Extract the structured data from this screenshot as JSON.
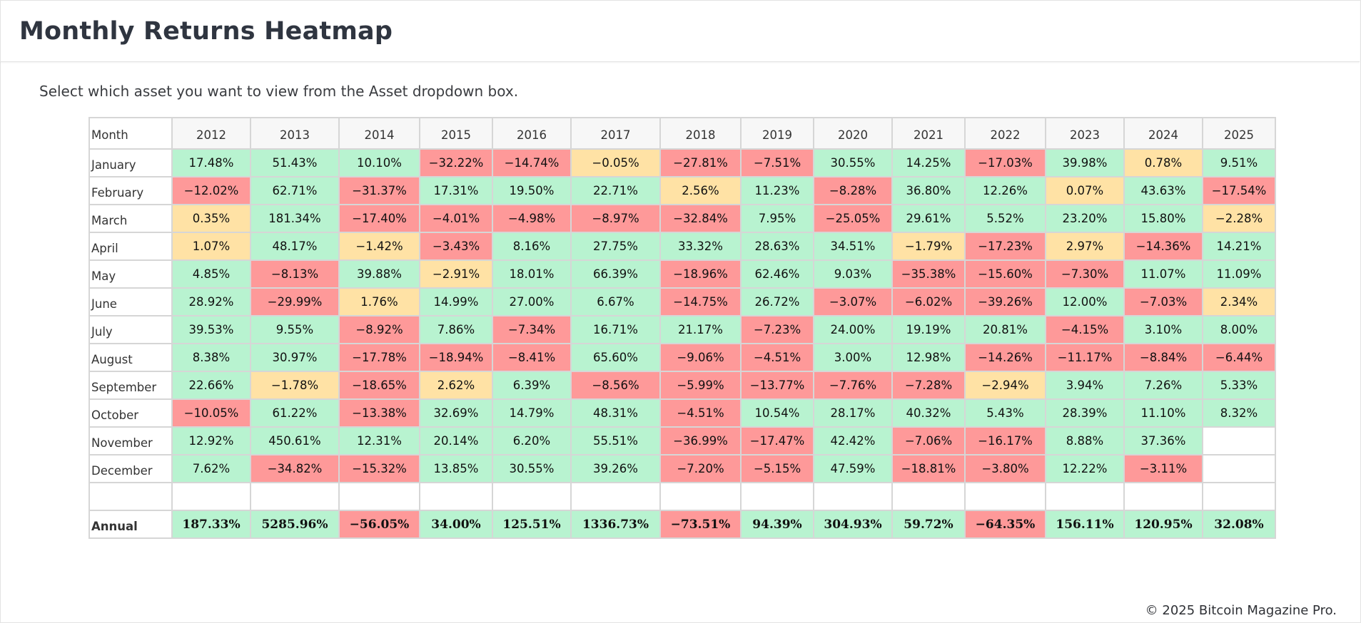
{
  "title": "Monthly Returns Heatmap",
  "instruction": "Select which asset you want to view from the Asset dropdown box.",
  "footer": "© 2025 Bitcoin Magazine Pro.",
  "colors": {
    "positive": "#b8f3d0",
    "negative": "#fe9999",
    "neutral": "#ffe2a5",
    "empty": "#ffffff"
  },
  "chart_data": {
    "type": "heatmap",
    "title": "Monthly Returns Heatmap",
    "row_header": "Month",
    "years": [
      "2012",
      "2013",
      "2014",
      "2015",
      "2016",
      "2017",
      "2018",
      "2019",
      "2020",
      "2021",
      "2022",
      "2023",
      "2024",
      "2025"
    ],
    "rows": [
      {
        "month": "January",
        "values": [
          "17.48%",
          "51.43%",
          "10.10%",
          "−32.22%",
          "−14.74%",
          "−0.05%",
          "−27.81%",
          "−7.51%",
          "30.55%",
          "14.25%",
          "−17.03%",
          "39.98%",
          "0.78%",
          "9.51%"
        ],
        "tones": [
          "pos",
          "pos",
          "pos",
          "neg",
          "neg",
          "neu",
          "neg",
          "neg",
          "pos",
          "pos",
          "neg",
          "pos",
          "neu",
          "pos"
        ]
      },
      {
        "month": "February",
        "values": [
          "−12.02%",
          "62.71%",
          "−31.37%",
          "17.31%",
          "19.50%",
          "22.71%",
          "2.56%",
          "11.23%",
          "−8.28%",
          "36.80%",
          "12.26%",
          "0.07%",
          "43.63%",
          "−17.54%"
        ],
        "tones": [
          "neg",
          "pos",
          "neg",
          "pos",
          "pos",
          "pos",
          "neu",
          "pos",
          "neg",
          "pos",
          "pos",
          "neu",
          "pos",
          "neg"
        ]
      },
      {
        "month": "March",
        "values": [
          "0.35%",
          "181.34%",
          "−17.40%",
          "−4.01%",
          "−4.98%",
          "−8.97%",
          "−32.84%",
          "7.95%",
          "−25.05%",
          "29.61%",
          "5.52%",
          "23.20%",
          "15.80%",
          "−2.28%"
        ],
        "tones": [
          "neu",
          "pos",
          "neg",
          "neg",
          "neg",
          "neg",
          "neg",
          "pos",
          "neg",
          "pos",
          "pos",
          "pos",
          "pos",
          "neu"
        ]
      },
      {
        "month": "April",
        "values": [
          "1.07%",
          "48.17%",
          "−1.42%",
          "−3.43%",
          "8.16%",
          "27.75%",
          "33.32%",
          "28.63%",
          "34.51%",
          "−1.79%",
          "−17.23%",
          "2.97%",
          "−14.36%",
          "14.21%"
        ],
        "tones": [
          "neu",
          "pos",
          "neu",
          "neg",
          "pos",
          "pos",
          "pos",
          "pos",
          "pos",
          "neu",
          "neg",
          "neu",
          "neg",
          "pos"
        ]
      },
      {
        "month": "May",
        "values": [
          "4.85%",
          "−8.13%",
          "39.88%",
          "−2.91%",
          "18.01%",
          "66.39%",
          "−18.96%",
          "62.46%",
          "9.03%",
          "−35.38%",
          "−15.60%",
          "−7.30%",
          "11.07%",
          "11.09%"
        ],
        "tones": [
          "pos",
          "neg",
          "pos",
          "neu",
          "pos",
          "pos",
          "neg",
          "pos",
          "pos",
          "neg",
          "neg",
          "neg",
          "pos",
          "pos"
        ]
      },
      {
        "month": "June",
        "values": [
          "28.92%",
          "−29.99%",
          "1.76%",
          "14.99%",
          "27.00%",
          "6.67%",
          "−14.75%",
          "26.72%",
          "−3.07%",
          "−6.02%",
          "−39.26%",
          "12.00%",
          "−7.03%",
          "2.34%"
        ],
        "tones": [
          "pos",
          "neg",
          "neu",
          "pos",
          "pos",
          "pos",
          "neg",
          "pos",
          "neg",
          "neg",
          "neg",
          "pos",
          "neg",
          "neu"
        ]
      },
      {
        "month": "July",
        "values": [
          "39.53%",
          "9.55%",
          "−8.92%",
          "7.86%",
          "−7.34%",
          "16.71%",
          "21.17%",
          "−7.23%",
          "24.00%",
          "19.19%",
          "20.81%",
          "−4.15%",
          "3.10%",
          "8.00%"
        ],
        "tones": [
          "pos",
          "pos",
          "neg",
          "pos",
          "neg",
          "pos",
          "pos",
          "neg",
          "pos",
          "pos",
          "pos",
          "neg",
          "pos",
          "pos"
        ]
      },
      {
        "month": "August",
        "values": [
          "8.38%",
          "30.97%",
          "−17.78%",
          "−18.94%",
          "−8.41%",
          "65.60%",
          "−9.06%",
          "−4.51%",
          "3.00%",
          "12.98%",
          "−14.26%",
          "−11.17%",
          "−8.84%",
          "−6.44%"
        ],
        "tones": [
          "pos",
          "pos",
          "neg",
          "neg",
          "neg",
          "pos",
          "neg",
          "neg",
          "pos",
          "pos",
          "neg",
          "neg",
          "neg",
          "neg"
        ]
      },
      {
        "month": "September",
        "values": [
          "22.66%",
          "−1.78%",
          "−18.65%",
          "2.62%",
          "6.39%",
          "−8.56%",
          "−5.99%",
          "−13.77%",
          "−7.76%",
          "−7.28%",
          "−2.94%",
          "3.94%",
          "7.26%",
          "5.33%"
        ],
        "tones": [
          "pos",
          "neu",
          "neg",
          "neu",
          "pos",
          "neg",
          "neg",
          "neg",
          "neg",
          "neg",
          "neu",
          "pos",
          "pos",
          "pos"
        ]
      },
      {
        "month": "October",
        "values": [
          "−10.05%",
          "61.22%",
          "−13.38%",
          "32.69%",
          "14.79%",
          "48.31%",
          "−4.51%",
          "10.54%",
          "28.17%",
          "40.32%",
          "5.43%",
          "28.39%",
          "11.10%",
          "8.32%"
        ],
        "tones": [
          "neg",
          "pos",
          "neg",
          "pos",
          "pos",
          "pos",
          "neg",
          "pos",
          "pos",
          "pos",
          "pos",
          "pos",
          "pos",
          "pos"
        ]
      },
      {
        "month": "November",
        "values": [
          "12.92%",
          "450.61%",
          "12.31%",
          "20.14%",
          "6.20%",
          "55.51%",
          "−36.99%",
          "−17.47%",
          "42.42%",
          "−7.06%",
          "−16.17%",
          "8.88%",
          "37.36%",
          ""
        ],
        "tones": [
          "pos",
          "pos",
          "pos",
          "pos",
          "pos",
          "pos",
          "neg",
          "neg",
          "pos",
          "neg",
          "neg",
          "pos",
          "pos",
          "emp"
        ]
      },
      {
        "month": "December",
        "values": [
          "7.62%",
          "−34.82%",
          "−15.32%",
          "13.85%",
          "30.55%",
          "39.26%",
          "−7.20%",
          "−5.15%",
          "47.59%",
          "−18.81%",
          "−3.80%",
          "12.22%",
          "−3.11%",
          ""
        ],
        "tones": [
          "pos",
          "neg",
          "neg",
          "pos",
          "pos",
          "pos",
          "neg",
          "neg",
          "pos",
          "neg",
          "neg",
          "pos",
          "neg",
          "emp"
        ]
      }
    ],
    "annual": {
      "label": "Annual",
      "values": [
        "187.33%",
        "5285.96%",
        "−56.05%",
        "34.00%",
        "125.51%",
        "1336.73%",
        "−73.51%",
        "94.39%",
        "304.93%",
        "59.72%",
        "−64.35%",
        "156.11%",
        "120.95%",
        "32.08%"
      ],
      "tones": [
        "pos",
        "pos",
        "neg",
        "pos",
        "pos",
        "pos",
        "neg",
        "pos",
        "pos",
        "pos",
        "neg",
        "pos",
        "pos",
        "pos"
      ]
    }
  }
}
